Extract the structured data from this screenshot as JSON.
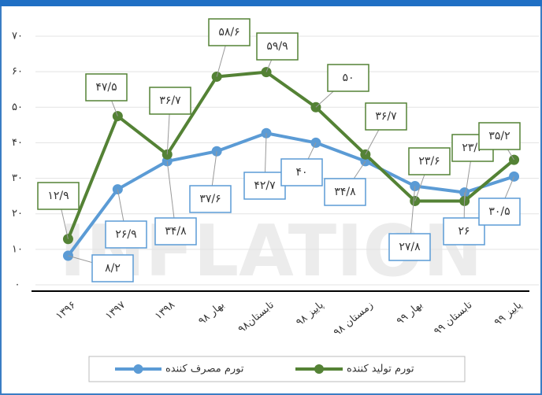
{
  "chart_data": {
    "type": "line",
    "categories": [
      "۱۳۹۶",
      "۱۳۹۷",
      "۱۳۹۸",
      "بهار ۹۸",
      "تابستان۹۸",
      "پاییز ۹۸",
      "زمستان ۹۸",
      "بهار ۹۹",
      "تابستان ۹۹",
      "پاییز ۹۹"
    ],
    "series": [
      {
        "name": "تورم مصرف کننده",
        "color": "#5b9bd5",
        "values": [
          8.2,
          26.9,
          34.8,
          37.6,
          42.7,
          40,
          34.8,
          27.8,
          26,
          30.5
        ],
        "value_labels": [
          "۸/۲",
          "۲۶/۹",
          "۳۴/۸",
          "۳۷/۶",
          "۴۲/۷",
          "۴۰",
          "۳۴/۸",
          "۲۷/۸",
          "۲۶",
          "۳۰/۵"
        ]
      },
      {
        "name": "تورم تولید کننده",
        "color": "#548235",
        "values": [
          12.9,
          47.5,
          36.7,
          58.6,
          59.9,
          50,
          36.7,
          23.6,
          23.6,
          35.2
        ],
        "value_labels": [
          "۱۲/۹",
          "۴۷/۵",
          "۳۶/۷",
          "۵۸/۶",
          "۵۹/۹",
          "۵۰",
          "۳۶/۷",
          "۲۳/۶",
          "۲۳/۶",
          "۳۵/۲"
        ]
      }
    ],
    "ylim": [
      0,
      70
    ],
    "yticks": [
      {
        "value": 0,
        "label": "۰"
      },
      {
        "value": 10,
        "label": "۱۰"
      },
      {
        "value": 20,
        "label": "۲۰"
      },
      {
        "value": 30,
        "label": "۳۰"
      },
      {
        "value": 40,
        "label": "۴۰"
      },
      {
        "value": 50,
        "label": "۵۰"
      },
      {
        "value": 60,
        "label": "۶۰"
      },
      {
        "value": 70,
        "label": "۷۰"
      }
    ],
    "grid": true,
    "legend": "bottom"
  }
}
